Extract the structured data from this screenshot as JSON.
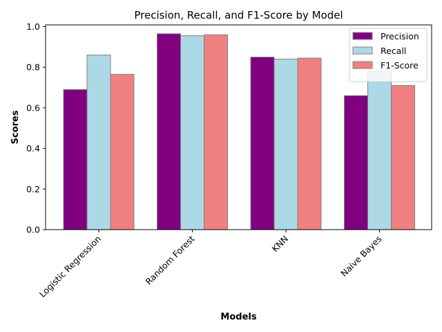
{
  "chart_data": {
    "type": "bar",
    "title": "Precision, Recall, and F1-Score by Model",
    "xlabel": "Models",
    "ylabel": "Scores",
    "categories": [
      "Logistic Regression",
      "Random Forest",
      "KNN",
      "Naive Bayes"
    ],
    "series": [
      {
        "name": "Precision",
        "color": "#800080",
        "values": [
          0.69,
          0.965,
          0.85,
          0.66
        ]
      },
      {
        "name": "Recall",
        "color": "#add8e6",
        "values": [
          0.86,
          0.955,
          0.84,
          0.78
        ]
      },
      {
        "name": "F1-Score",
        "color": "#f08080",
        "values": [
          0.765,
          0.96,
          0.845,
          0.71
        ]
      }
    ],
    "ylim": [
      0,
      1.0
    ],
    "yticks": [
      "0.0",
      "0.2",
      "0.4",
      "0.6",
      "0.8",
      "1.0"
    ],
    "ytick_values": [
      0,
      0.2,
      0.4,
      0.6,
      0.8,
      1.0
    ],
    "grid": false,
    "legend": "top-right",
    "edge_color": "#808080"
  }
}
